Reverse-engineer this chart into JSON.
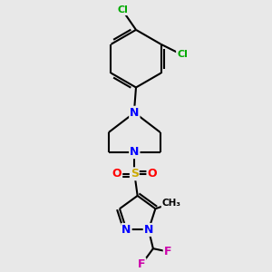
{
  "background_color": "#e8e8e8",
  "atom_colors": {
    "C": "#000000",
    "N": "#0000ff",
    "O": "#ff0000",
    "S": "#ccaa00",
    "Cl": "#00aa00",
    "F": "#cc00aa",
    "H": "#000000"
  },
  "bond_color": "#000000",
  "bond_width": 1.5,
  "font_size_atoms": 9,
  "font_size_small": 7.5
}
